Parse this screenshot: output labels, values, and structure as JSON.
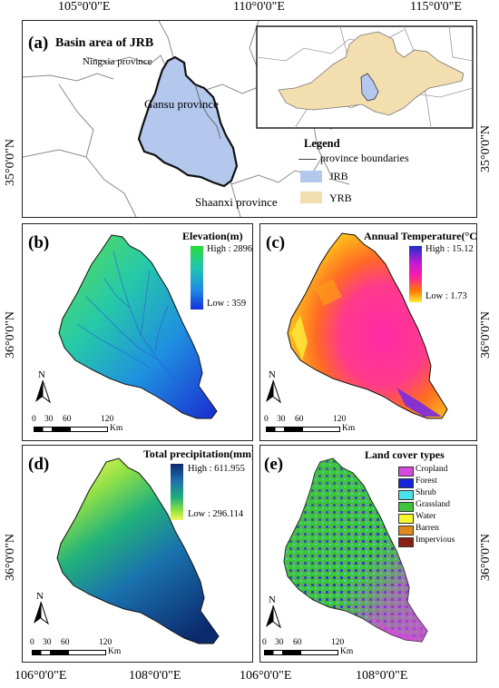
{
  "coords": {
    "top": [
      "105°0'0\"E",
      "110°0'0\"E",
      "115°0'0\"E"
    ],
    "bottom": [
      "106°0'0\"E",
      "108°0'0\"E",
      "106°0'0\"E",
      "108°0'0\"E"
    ],
    "top_left_lat": "35°0'0\"N",
    "top_right_lat": "35°0'0\"N",
    "left_lat_b": "36°0'0\"N",
    "left_lat_d": "36°0'0\"N",
    "right_lat_c": "36°0'0\"N",
    "right_lat_e": "36°0'0\"N"
  },
  "panel_a": {
    "label": "(a)",
    "title": "Basin area of JRB",
    "provinces": [
      "Ningxia province",
      "Gansu province",
      "Shaanxi province"
    ],
    "legend_title": "Legend",
    "legend_items": [
      {
        "label": "province boundaries",
        "color": "#444444"
      },
      {
        "label": "JRB",
        "color": "#b4c8ee"
      },
      {
        "label": "YRB",
        "color": "#f3deb0"
      }
    ]
  },
  "panel_b": {
    "label": "(b)",
    "title": "Elevation(m)",
    "high": "High : 2896",
    "low": "Low : 359",
    "ramp": [
      "#2adc3a",
      "#1fc6b2",
      "#1f88e6",
      "#1530d8"
    ]
  },
  "panel_c": {
    "label": "(c)",
    "title": "Annual Temperature(°C)",
    "high": "High : 15.12",
    "low": "Low : 1.73",
    "ramp": [
      "#1c2fc8",
      "#c11bd6",
      "#ff1fa2",
      "#ff7a00",
      "#ffe93a"
    ]
  },
  "panel_d": {
    "label": "(d)",
    "title": "Total precipitation(mm)",
    "high": "High : 611.955",
    "low": "Low : 296.114",
    "ramp": [
      "#0b2a6e",
      "#1f6fae",
      "#1fae7a",
      "#9be63c",
      "#f1f561"
    ]
  },
  "panel_e": {
    "label": "(e)",
    "title": "Land cover types",
    "classes": [
      {
        "label": "Cropland",
        "color": "#d54bdc"
      },
      {
        "label": "Forest",
        "color": "#1424d8"
      },
      {
        "label": "Shrub",
        "color": "#49e2e8"
      },
      {
        "label": "Grassland",
        "color": "#3fc43c"
      },
      {
        "label": "Water",
        "color": "#f7f72f"
      },
      {
        "label": "Barren",
        "color": "#e0891f"
      },
      {
        "label": "Impervious",
        "color": "#8a1f14"
      }
    ]
  },
  "north": "N",
  "scale": {
    "ticks": [
      "0",
      "30",
      "60",
      "120"
    ],
    "unit": "Km"
  }
}
